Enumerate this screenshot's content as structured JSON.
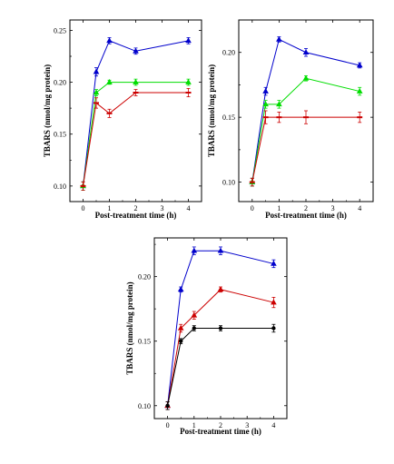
{
  "chart_data": [
    {
      "type": "line",
      "title": "",
      "xlabel": "Post-treatment time (h)",
      "ylabel": "TBARS (nmol/mg protein)",
      "xlim": [
        -0.5,
        4.5
      ],
      "ylim": [
        0.085,
        0.26
      ],
      "xticks": [
        0,
        1,
        2,
        3,
        4
      ],
      "yticks": [
        0.1,
        0.15,
        0.2,
        0.25
      ],
      "ytick_labels": [
        "0.10",
        "0.15",
        "0.20",
        "0.25"
      ],
      "grid": false,
      "legend": "none",
      "series": [
        {
          "color": "#0000cc",
          "marker": "triangle",
          "x": [
            0,
            0.5,
            1,
            2,
            4
          ],
          "y": [
            0.1,
            0.21,
            0.24,
            0.23,
            0.24
          ],
          "err": [
            0.004,
            0.004,
            0.003,
            0.003,
            0.003
          ]
        },
        {
          "color": "#00dd00",
          "marker": "triangle",
          "x": [
            0,
            0.5,
            1,
            2,
            4
          ],
          "y": [
            0.1,
            0.19,
            0.2,
            0.2,
            0.2
          ],
          "err": [
            0.004,
            0.003,
            0.002,
            0.003,
            0.003
          ]
        },
        {
          "color": "#cc0000",
          "marker": "dash",
          "x": [
            0,
            0.5,
            1,
            2,
            4
          ],
          "y": [
            0.1,
            0.18,
            0.17,
            0.19,
            0.19
          ],
          "err": [
            0.004,
            0.005,
            0.004,
            0.003,
            0.004
          ]
        }
      ]
    },
    {
      "type": "line",
      "title": "",
      "xlabel": "Post-treatment time (h)",
      "ylabel": "TBARS (nmol/mg protein)",
      "xlim": [
        -0.5,
        4.5
      ],
      "ylim": [
        0.085,
        0.225
      ],
      "xticks": [
        0,
        1,
        2,
        3,
        4
      ],
      "yticks": [
        0.1,
        0.15,
        0.2
      ],
      "ytick_labels": [
        "0.10",
        "0.15",
        "0.20"
      ],
      "grid": false,
      "legend": "none",
      "series": [
        {
          "color": "#0000cc",
          "marker": "triangle",
          "x": [
            0,
            0.5,
            1,
            2,
            4
          ],
          "y": [
            0.1,
            0.17,
            0.21,
            0.2,
            0.19
          ],
          "err": [
            0.003,
            0.003,
            0.002,
            0.003,
            0.002
          ]
        },
        {
          "color": "#00dd00",
          "marker": "triangle",
          "x": [
            0,
            0.5,
            1,
            2,
            4
          ],
          "y": [
            0.1,
            0.16,
            0.16,
            0.18,
            0.17
          ],
          "err": [
            0.003,
            0.003,
            0.003,
            0.002,
            0.003
          ]
        },
        {
          "color": "#cc0000",
          "marker": "dash",
          "x": [
            0,
            0.5,
            1,
            2,
            4
          ],
          "y": [
            0.1,
            0.15,
            0.15,
            0.15,
            0.15
          ],
          "err": [
            0.003,
            0.005,
            0.004,
            0.005,
            0.004
          ]
        }
      ]
    },
    {
      "type": "line",
      "title": "",
      "xlabel": "Post-treatment time (h)",
      "ylabel": "TBARS (nmol/mg protein)",
      "xlim": [
        -0.5,
        4.5
      ],
      "ylim": [
        0.09,
        0.23
      ],
      "xticks": [
        0,
        1,
        2,
        3,
        4
      ],
      "yticks": [
        0.1,
        0.15,
        0.2
      ],
      "ytick_labels": [
        "0.10",
        "0.15",
        "0.20"
      ],
      "grid": false,
      "legend": "none",
      "series": [
        {
          "color": "#0000cc",
          "marker": "triangle",
          "x": [
            0,
            0.5,
            1,
            2,
            4
          ],
          "y": [
            0.1,
            0.19,
            0.22,
            0.22,
            0.21
          ],
          "err": [
            0.003,
            0.002,
            0.003,
            0.003,
            0.003
          ]
        },
        {
          "color": "#cc0000",
          "marker": "triangle",
          "x": [
            0,
            0.5,
            1,
            2,
            4
          ],
          "y": [
            0.1,
            0.16,
            0.17,
            0.19,
            0.18
          ],
          "err": [
            0.003,
            0.003,
            0.003,
            0.002,
            0.004
          ]
        },
        {
          "color": "#000000",
          "marker": "circle",
          "x": [
            0,
            0.5,
            1,
            2,
            4
          ],
          "y": [
            0.1,
            0.15,
            0.16,
            0.16,
            0.16
          ],
          "err": [
            0.003,
            0.002,
            0.002,
            0.002,
            0.003
          ]
        }
      ]
    }
  ]
}
